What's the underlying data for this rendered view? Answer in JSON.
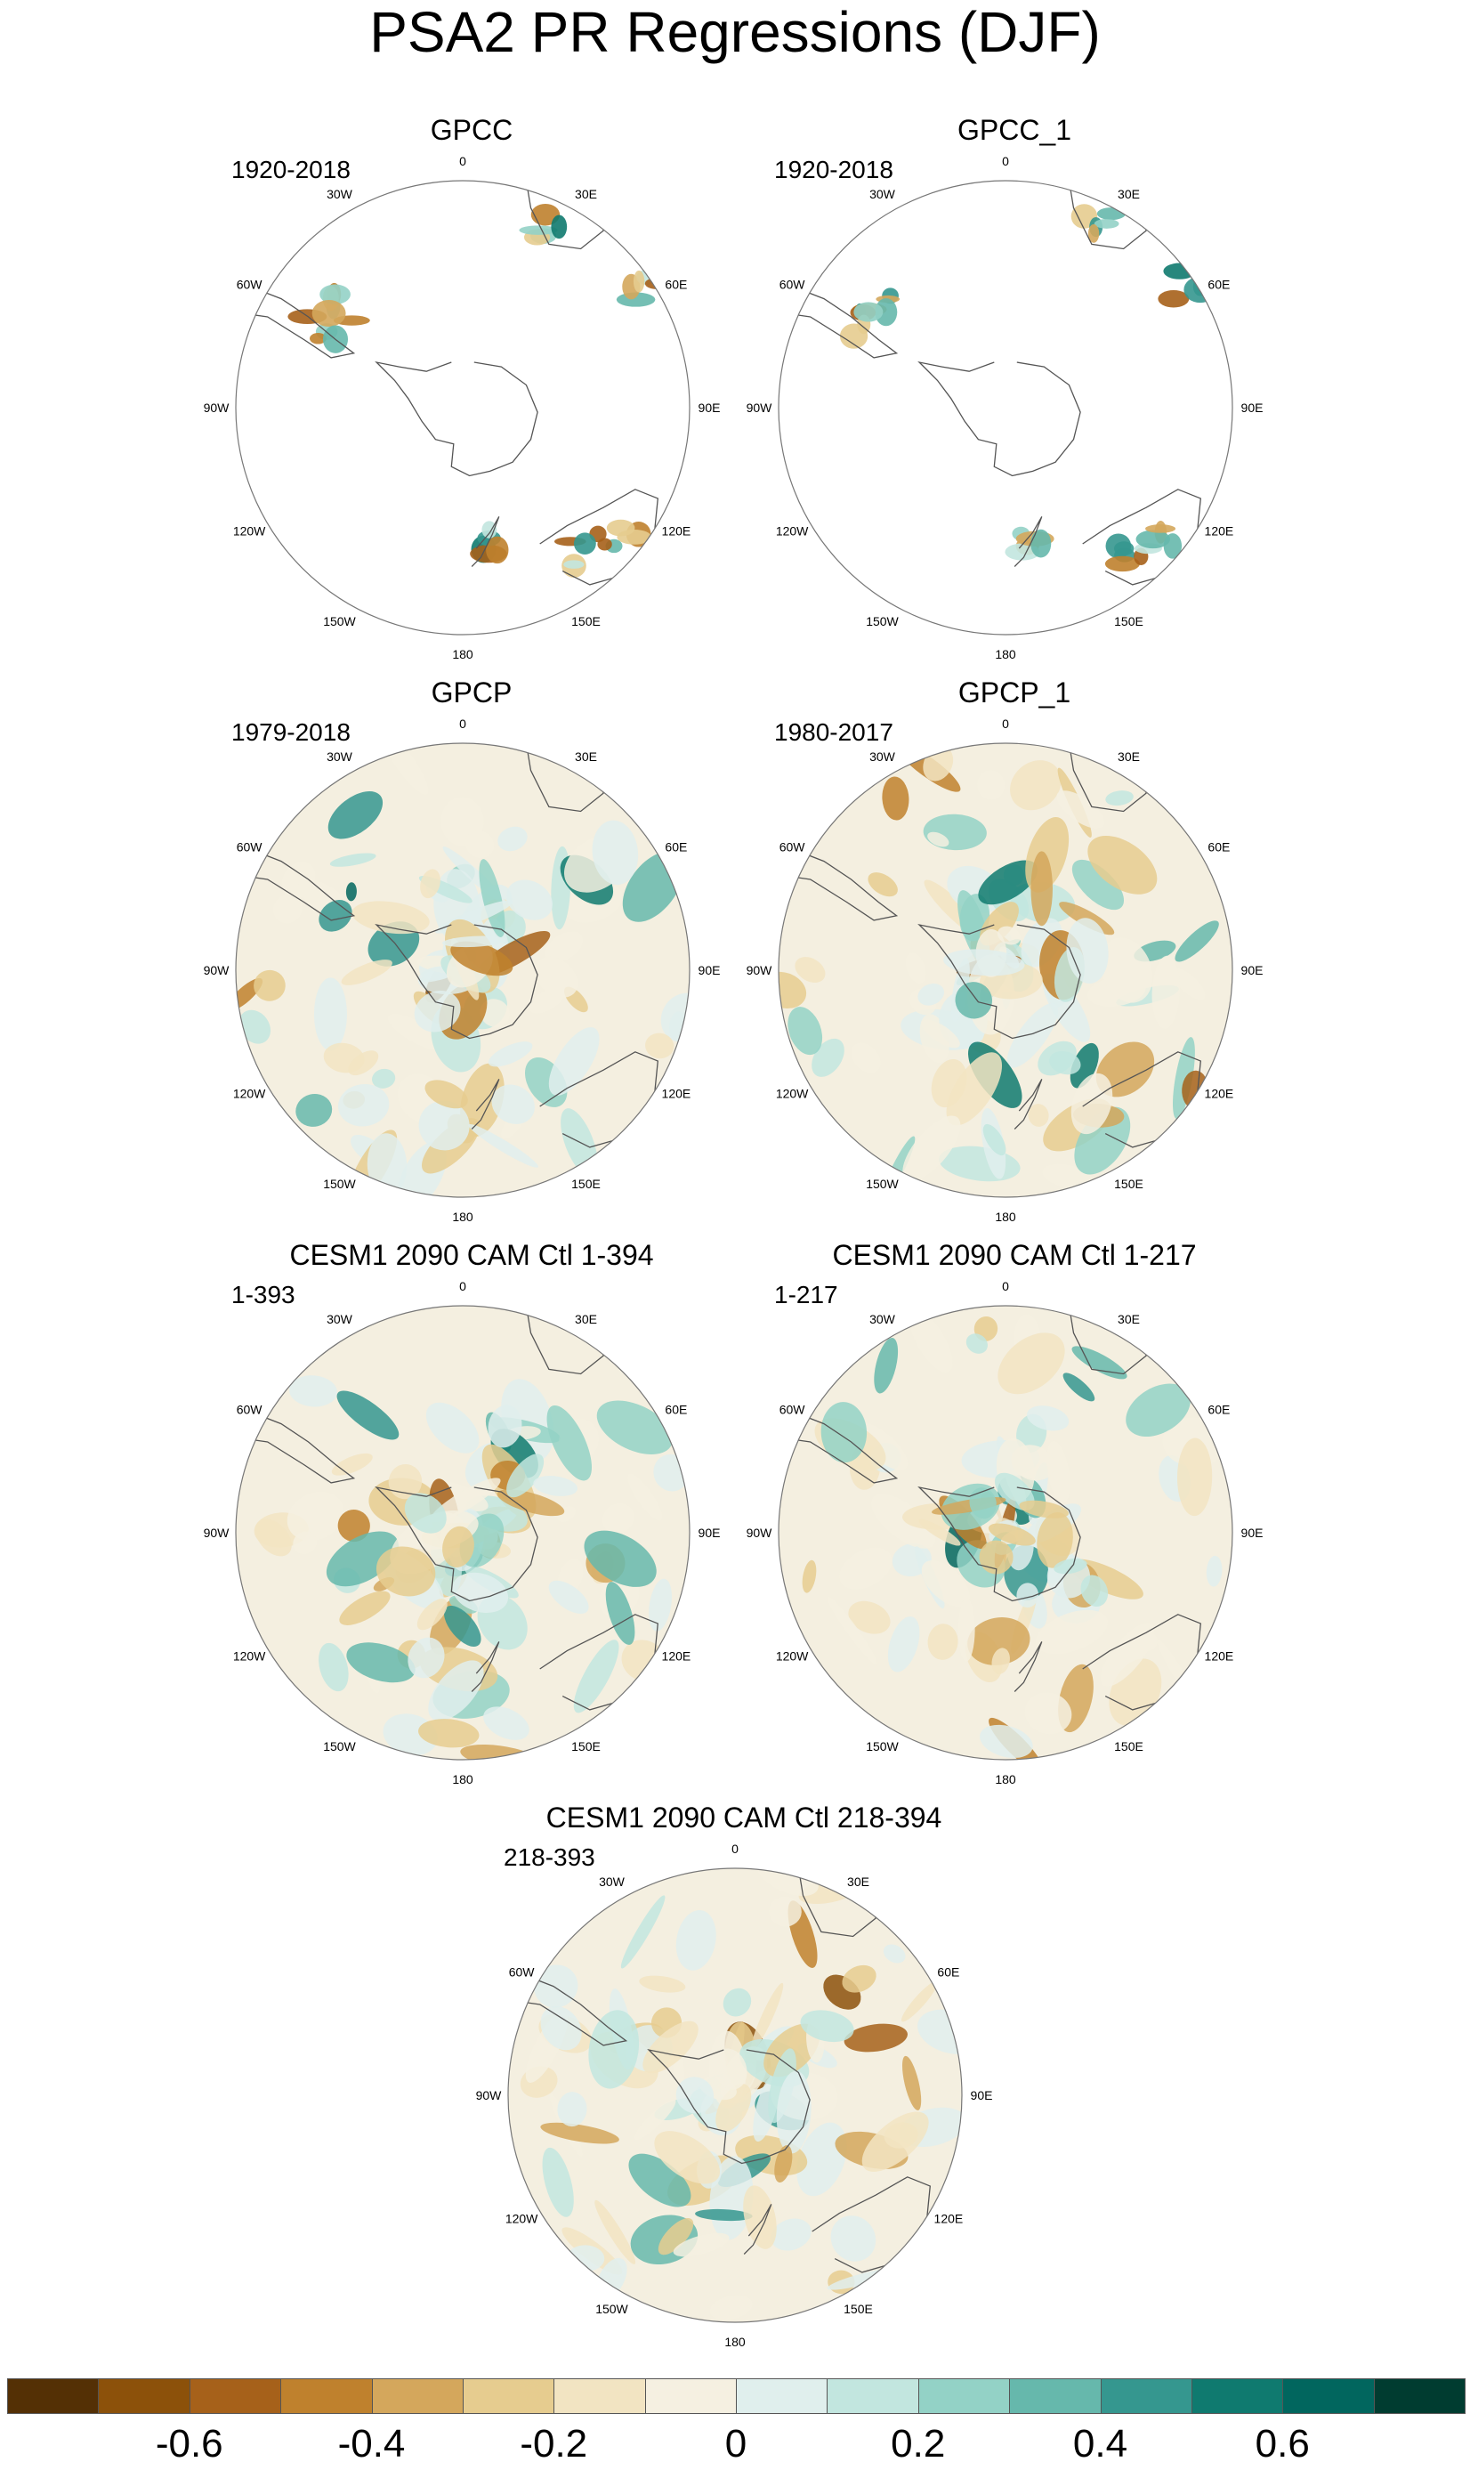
{
  "title": "PSA2 PR Regressions (DJF)",
  "lon_labels": [
    "0",
    "30E",
    "60E",
    "90E",
    "120E",
    "150E",
    "180",
    "150W",
    "120W",
    "90W",
    "60W",
    "30W"
  ],
  "panels": [
    {
      "id": "p1",
      "title": "GPCC",
      "period": "1920-2018",
      "coverage": "land"
    },
    {
      "id": "p2",
      "title": "GPCC_1",
      "period": "1920-2018",
      "coverage": "land"
    },
    {
      "id": "p3",
      "title": "GPCP",
      "period": "1979-2018",
      "coverage": "full"
    },
    {
      "id": "p4",
      "title": "GPCP_1",
      "period": "1980-2017",
      "coverage": "full"
    },
    {
      "id": "p5",
      "title": "CESM1 2090 CAM Ctl 1-394",
      "period": "1-393",
      "coverage": "full"
    },
    {
      "id": "p6",
      "title": "CESM1 2090 CAM Ctl 1-217",
      "period": "1-217",
      "coverage": "full"
    },
    {
      "id": "p7",
      "title": "CESM1 2090 CAM Ctl 218-394",
      "period": "218-393",
      "coverage": "full"
    }
  ],
  "colorbar": {
    "colors": [
      "#543005",
      "#8c510a",
      "#a6611a",
      "#bf812d",
      "#d4a75c",
      "#e6cc8f",
      "#f2e4c2",
      "#f5f0e1",
      "#e0efed",
      "#c2e6df",
      "#93d2c6",
      "#66b8ac",
      "#35978f",
      "#0f7a6f",
      "#01665e",
      "#003c30"
    ],
    "tick_labels": [
      "-0.6",
      "-0.4",
      "-0.2",
      "0",
      "0.2",
      "0.4",
      "0.6"
    ],
    "tick_values": [
      -0.6,
      -0.4,
      -0.2,
      0,
      0.2,
      0.4,
      0.6
    ],
    "range": [
      -0.8,
      0.8
    ]
  }
}
